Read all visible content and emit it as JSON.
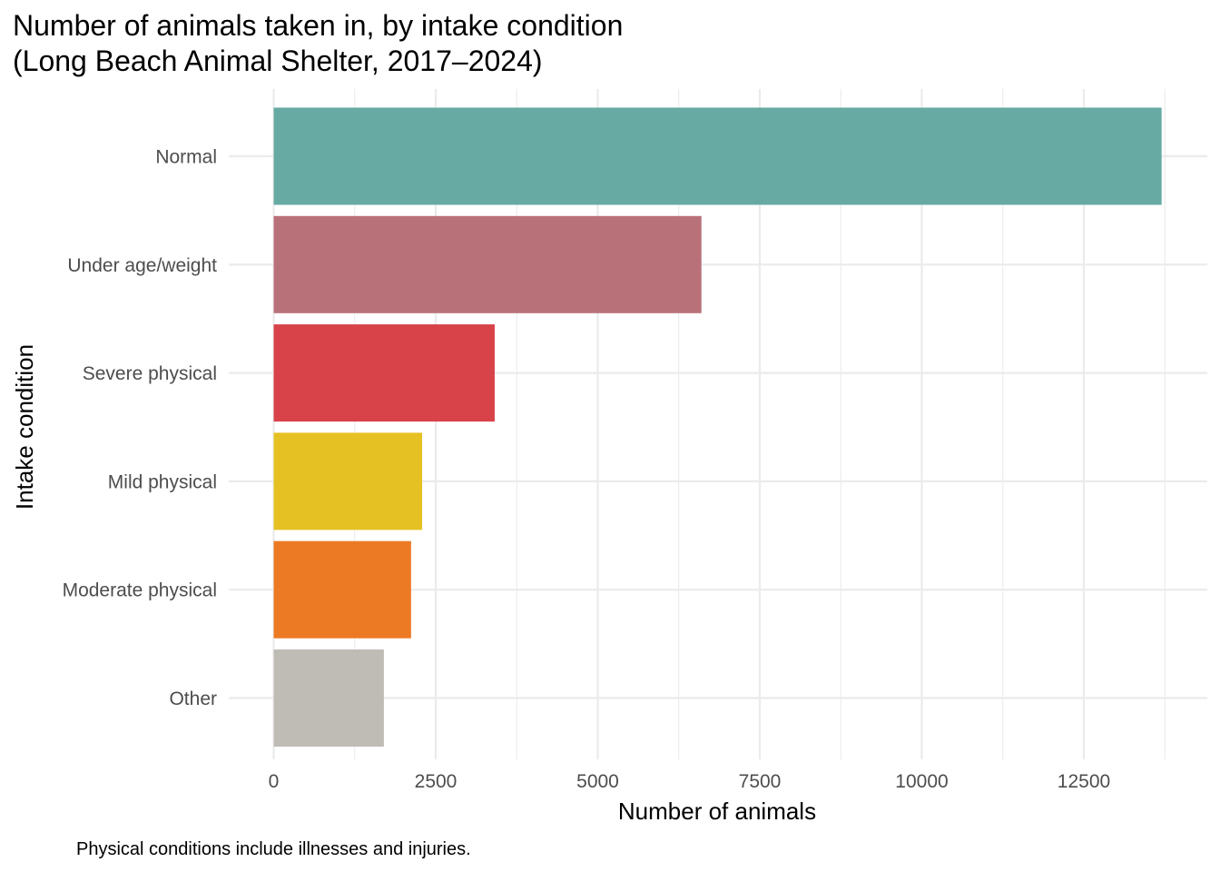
{
  "chart_data": {
    "type": "bar",
    "orientation": "horizontal",
    "title": "Number of animals taken in, by intake condition",
    "subtitle": "(Long Beach Animal Shelter, 2017–2024)",
    "xlabel": "Number of animals",
    "ylabel": "Intake condition",
    "caption": "Physical conditions include illnesses and injuries.",
    "categories": [
      "Normal",
      "Under age/weight",
      "Severe physical",
      "Mild physical",
      "Moderate physical",
      "Other"
    ],
    "values": [
      13700,
      6600,
      3410,
      2290,
      2120,
      1700
    ],
    "colors": [
      "#66aaa3",
      "#b97179",
      "#d84249",
      "#e6c124",
      "#ec7a24",
      "#bfbcb6"
    ],
    "xlim": [
      0,
      14400
    ],
    "x_ticks": [
      0,
      2500,
      5000,
      7500,
      10000,
      12500
    ],
    "x_tick_labels": [
      "0",
      "2500",
      "5000",
      "7500",
      "10000",
      "12500"
    ],
    "grid": true,
    "legend": "none"
  }
}
